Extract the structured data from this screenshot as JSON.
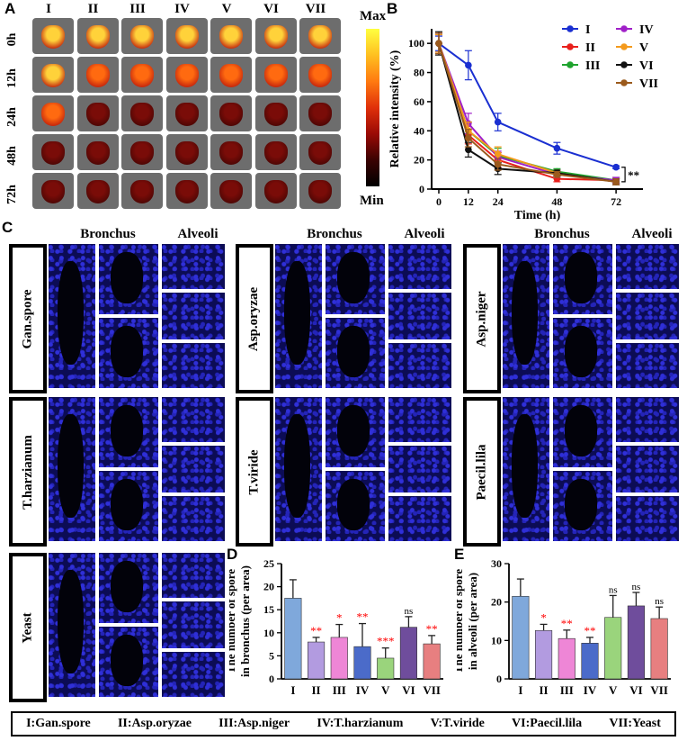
{
  "panels": {
    "a": "A",
    "b": "B",
    "c": "C",
    "d": "D",
    "e": "E"
  },
  "groups": [
    "I",
    "II",
    "III",
    "IV",
    "V",
    "VI",
    "VII"
  ],
  "times": [
    "0h",
    "12h",
    "24h",
    "48h",
    "72h"
  ],
  "colorbar": {
    "max": "Max",
    "min": "Min"
  },
  "section_headers": {
    "bronchus": "Bronchus",
    "alveoli": "Alveoli"
  },
  "strains": {
    "gan": "Gan.spore",
    "oryzae": "Asp.oryzae",
    "niger": "Asp.niger",
    "harz": "T.harzianum",
    "viride": "T.viride",
    "paecil": "Paecil.lila",
    "yeast": "Yeast"
  },
  "legend_items": [
    "I:Gan.spore",
    "II:Asp.oryzae",
    "III:Asp.niger",
    "IV:T.harzianum",
    "V:T.viride",
    "VI:Paecil.lila",
    "VII:Yeast"
  ],
  "colors": {
    "I": "#1a2fd1",
    "II": "#e8201c",
    "III": "#1fa32e",
    "IV": "#a020c8",
    "V": "#f49a1c",
    "VI": "#111111",
    "VII": "#9b5a1c",
    "bar_I": "#7fa8db",
    "bar_II": "#b29be0",
    "bar_III": "#ee86d6",
    "bar_IV": "#4b6bc9",
    "bar_V": "#9ad47c",
    "bar_VI": "#6f4d9c",
    "bar_VII": "#e77f80",
    "sig": "#ff0000"
  },
  "chart_data": [
    {
      "type": "line",
      "panel": "B",
      "xlabel": "Time (h)",
      "ylabel": "Relative intensity (%)",
      "x": [
        0,
        12,
        24,
        48,
        72
      ],
      "xticks": [
        "0",
        "12",
        "24",
        "48",
        "72"
      ],
      "yticks": [
        "0",
        "20",
        "40",
        "60",
        "80",
        "100"
      ],
      "ylim": [
        0,
        110
      ],
      "annotation": "**",
      "series": [
        {
          "name": "I",
          "values": [
            100,
            85,
            46,
            28,
            15
          ],
          "err": [
            5,
            10,
            6,
            4,
            1
          ]
        },
        {
          "name": "II",
          "values": [
            100,
            37,
            20,
            7,
            6
          ],
          "err": [
            7,
            6,
            5,
            2,
            2
          ]
        },
        {
          "name": "III",
          "values": [
            100,
            40,
            23,
            12,
            6
          ],
          "err": [
            6,
            6,
            5,
            2,
            2
          ]
        },
        {
          "name": "IV",
          "values": [
            100,
            45,
            22,
            10,
            6
          ],
          "err": [
            6,
            7,
            4,
            2,
            2
          ]
        },
        {
          "name": "V",
          "values": [
            100,
            40,
            24,
            11,
            5
          ],
          "err": [
            6,
            6,
            5,
            2,
            2
          ]
        },
        {
          "name": "VI",
          "values": [
            100,
            27,
            14,
            11,
            5
          ],
          "err": [
            8,
            5,
            4,
            2,
            2
          ]
        },
        {
          "name": "VII",
          "values": [
            100,
            35,
            17,
            10,
            5
          ],
          "err": [
            7,
            6,
            4,
            2,
            2
          ]
        }
      ]
    },
    {
      "type": "bar",
      "panel": "D",
      "ylabel": "The number of spore in bronchus (per area)",
      "categories": [
        "I",
        "II",
        "III",
        "IV",
        "V",
        "VI",
        "VII"
      ],
      "values": [
        17.5,
        8,
        9,
        7,
        4.5,
        11.2,
        7.6
      ],
      "err": [
        4,
        1,
        2.8,
        5,
        2.2,
        2.3,
        1.8
      ],
      "sig": [
        "",
        "**",
        "*",
        "**",
        "***",
        "ns",
        "**"
      ],
      "ylim": [
        0,
        25
      ],
      "yticks": [
        "0",
        "5",
        "10",
        "15",
        "20",
        "25"
      ]
    },
    {
      "type": "bar",
      "panel": "E",
      "ylabel": "The number of spore in alveoli (per area)",
      "categories": [
        "I",
        "II",
        "III",
        "IV",
        "V",
        "VI",
        "VII"
      ],
      "values": [
        21.5,
        12.6,
        10.5,
        9.3,
        16,
        19,
        15.7
      ],
      "err": [
        4.5,
        1.6,
        2.2,
        1.5,
        5.7,
        3.5,
        3
      ],
      "sig": [
        "",
        "*",
        "**",
        "**",
        "ns",
        "ns",
        "ns"
      ],
      "ylim": [
        0,
        30
      ],
      "yticks": [
        "0",
        "10",
        "20",
        "30"
      ]
    }
  ]
}
